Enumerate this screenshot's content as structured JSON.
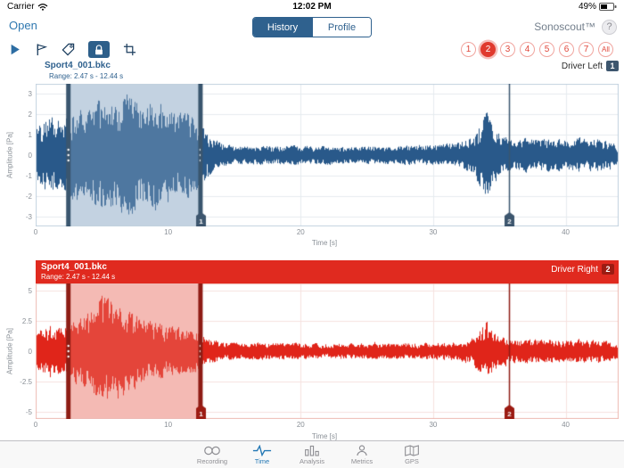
{
  "status_bar": {
    "carrier": "Carrier",
    "time": "12:02 PM",
    "battery_percent": "49%"
  },
  "nav": {
    "open_label": "Open",
    "segments": [
      "History",
      "Profile"
    ],
    "selected_segment": "History",
    "app_title": "Sonoscout™",
    "help_label": "?"
  },
  "toolbar": {
    "tools": [
      "play",
      "flag",
      "tag",
      "lock",
      "crop"
    ],
    "active_tool": "lock",
    "channels": [
      "1",
      "2",
      "3",
      "4",
      "5",
      "6",
      "7",
      "All"
    ],
    "selected_channel": "2"
  },
  "charts": [
    {
      "type": "waveform",
      "title": "Sport4_001.bkc",
      "range_label": "Range: 2.47 s - 12.44 s",
      "driver_label": "Driver Left",
      "badge": "1",
      "seed": 42,
      "selection": {
        "start": 2.47,
        "end": 12.44
      },
      "markers": [
        {
          "time": 12.44,
          "label": "1"
        },
        {
          "time": 35.7,
          "label": "2"
        }
      ],
      "x": {
        "min": 0,
        "max": 44,
        "ticks": [
          0,
          10,
          20,
          30,
          40
        ],
        "label": "Time [s]"
      },
      "y": {
        "max": 3.5,
        "ticks": [
          3,
          2,
          1,
          0,
          -1,
          -2,
          -3
        ],
        "label": "Amplitude [Pa]"
      },
      "envelope_pa_per_second": [
        1.6,
        2.1,
        1.7,
        2.5,
        2.3,
        3.0,
        2.8,
        3.2,
        2.6,
        2.9,
        2.5,
        2.2,
        2.1,
        1.1,
        0.6,
        0.5,
        0.45,
        0.5,
        0.45,
        0.5,
        0.5,
        0.45,
        0.5,
        0.45,
        0.4,
        0.45,
        0.5,
        0.45,
        0.5,
        0.55,
        0.5,
        0.6,
        0.65,
        1.0,
        2.2,
        1.1,
        0.75,
        0.9,
        0.8,
        0.85,
        0.8,
        0.9,
        0.85,
        0.8,
        0.5
      ],
      "colors": {
        "wave": "#29598a",
        "grid": "#e6ebf0",
        "axis": "#c3d2df",
        "sel_base": "#dce5ee",
        "sel_overlay": "rgba(150,175,200,0.35)",
        "edge": "#3a566f",
        "tag": "#3d566e"
      }
    },
    {
      "type": "waveform",
      "title": "Sport4_001.bkc",
      "range_label": "Range: 2.47 s - 12.44 s",
      "driver_label": "Driver Right",
      "badge": "2",
      "seed": 1337,
      "selection": {
        "start": 2.47,
        "end": 12.44
      },
      "markers": [
        {
          "time": 12.44,
          "label": "1"
        },
        {
          "time": 35.7,
          "label": "2"
        }
      ],
      "x": {
        "min": 0,
        "max": 44,
        "ticks": [
          0,
          10,
          20,
          30,
          40
        ],
        "label": "Time [s]"
      },
      "y": {
        "max": 5.6,
        "ticks": [
          5,
          2.5,
          0,
          -2.5,
          -5
        ],
        "label": "Amplitude [Pa]"
      },
      "envelope_pa_per_second": [
        1.8,
        2.4,
        2.0,
        2.9,
        3.4,
        4.8,
        4.3,
        3.6,
        2.9,
        2.5,
        2.2,
        2.0,
        1.9,
        1.1,
        0.85,
        0.75,
        0.7,
        0.75,
        0.7,
        0.75,
        0.7,
        0.7,
        0.65,
        0.7,
        0.65,
        0.7,
        0.7,
        0.65,
        0.7,
        0.75,
        0.7,
        0.8,
        0.85,
        1.2,
        2.6,
        1.3,
        1.0,
        1.05,
        1.0,
        1.05,
        1.0,
        1.1,
        1.0,
        0.95,
        0.6
      ],
      "colors": {
        "wave": "#e0251a",
        "grid": "#f6e2df",
        "axis": "#eebbb4",
        "sel_base": "#f9d9d5",
        "sel_overlay": "rgba(235,130,120,0.35)",
        "edge": "#8e1d14",
        "tag": "#9c1b12"
      }
    }
  ],
  "tab_bar": {
    "items": [
      {
        "label": "Recording",
        "icon": "reels"
      },
      {
        "label": "Time",
        "icon": "waveform",
        "selected": true
      },
      {
        "label": "Analysis",
        "icon": "bar-chart"
      },
      {
        "label": "Metrics",
        "icon": "person"
      },
      {
        "label": "GPS",
        "icon": "map"
      }
    ]
  }
}
